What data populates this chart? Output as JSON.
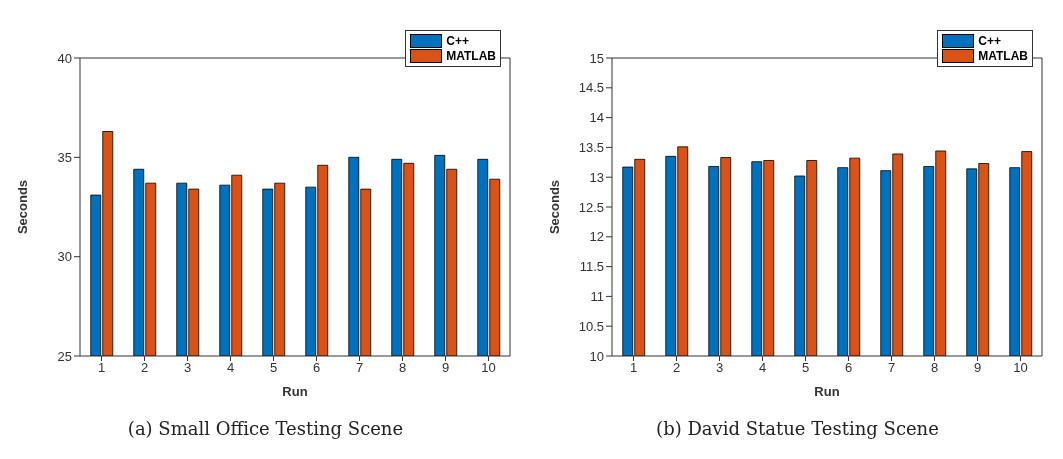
{
  "chart_data": [
    {
      "type": "bar",
      "title": "(a) Small Office Testing Scene",
      "xlabel": "Run",
      "ylabel": "Seconds",
      "categories": [
        "1",
        "2",
        "3",
        "4",
        "5",
        "6",
        "7",
        "8",
        "9",
        "10"
      ],
      "ylim": [
        25,
        40
      ],
      "yticks": [
        25,
        30,
        35,
        40
      ],
      "legend": "top right",
      "grid": false,
      "series": [
        {
          "name": "C++",
          "color": "#0072bd",
          "values": [
            33.1,
            34.4,
            33.7,
            33.6,
            33.4,
            33.5,
            35.0,
            34.9,
            35.1,
            34.9
          ]
        },
        {
          "name": "MATLAB",
          "color": "#d95319",
          "values": [
            36.3,
            33.7,
            33.4,
            34.1,
            33.7,
            34.6,
            33.4,
            34.7,
            34.4,
            33.9
          ]
        }
      ]
    },
    {
      "type": "bar",
      "title": "(b) David Statue Testing Scene",
      "xlabel": "Run",
      "ylabel": "Seconds",
      "categories": [
        "1",
        "2",
        "3",
        "4",
        "5",
        "6",
        "7",
        "8",
        "9",
        "10"
      ],
      "ylim": [
        10,
        15
      ],
      "yticks": [
        10,
        10.5,
        11,
        11.5,
        12,
        12.5,
        13,
        13.5,
        14,
        14.5,
        15
      ],
      "legend": "top right",
      "grid": false,
      "series": [
        {
          "name": "C++",
          "color": "#0072bd",
          "values": [
            13.17,
            13.35,
            13.18,
            13.26,
            13.02,
            13.16,
            13.11,
            13.18,
            13.14,
            13.16
          ]
        },
        {
          "name": "MATLAB",
          "color": "#d95319",
          "values": [
            13.3,
            13.51,
            13.33,
            13.28,
            13.28,
            13.32,
            13.39,
            13.44,
            13.23,
            13.43
          ]
        }
      ]
    }
  ]
}
